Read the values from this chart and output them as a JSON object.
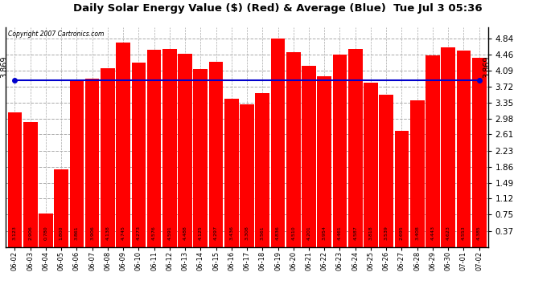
{
  "title": "Daily Solar Energy Value ($) (Red) & Average (Blue)  Tue Jul 3 05:36",
  "copyright": "Copyright 2007 Cartronics.com",
  "bar_color": "#ff0000",
  "avg_color": "#0000cc",
  "avg_value": 3.869,
  "avg_label": "3.869",
  "background_color": "#ffffff",
  "grid_color": "#aaaaaa",
  "yticks": [
    0.37,
    0.75,
    1.12,
    1.49,
    1.86,
    2.23,
    2.61,
    2.98,
    3.35,
    3.72,
    4.09,
    4.46,
    4.84
  ],
  "ylim_max": 5.1,
  "categories": [
    "06-02",
    "06-03",
    "06-04",
    "06-05",
    "06-06",
    "06-07",
    "06-08",
    "06-09",
    "06-10",
    "06-11",
    "06-12",
    "06-13",
    "06-14",
    "06-15",
    "06-16",
    "06-17",
    "06-18",
    "06-19",
    "06-20",
    "06-21",
    "06-22",
    "06-23",
    "06-24",
    "06-25",
    "06-26",
    "06-27",
    "06-28",
    "06-29",
    "06-30",
    "07-01",
    "07-02"
  ],
  "values": [
    3.123,
    2.906,
    0.78,
    1.8,
    3.861,
    3.906,
    4.138,
    4.745,
    4.273,
    4.576,
    4.591,
    4.488,
    4.125,
    4.297,
    3.436,
    3.308,
    3.561,
    4.836,
    4.51,
    4.201,
    3.954,
    4.461,
    4.587,
    3.818,
    3.539,
    2.695,
    3.408,
    4.443,
    4.623,
    4.553,
    4.385
  ]
}
